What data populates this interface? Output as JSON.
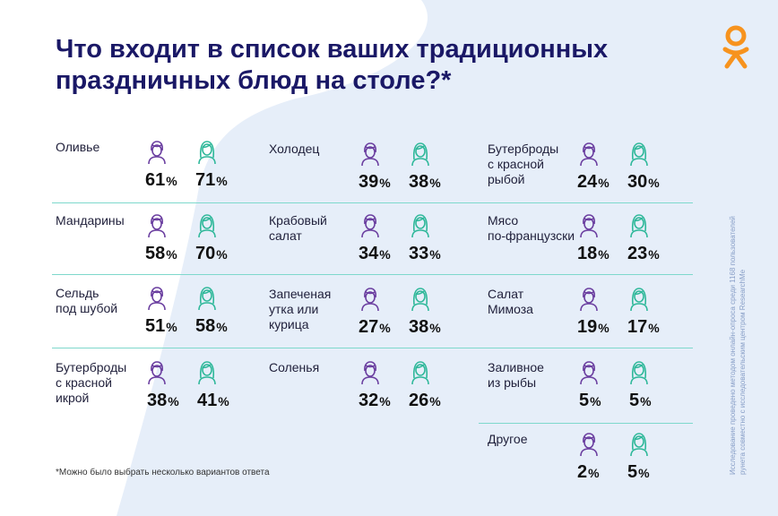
{
  "title": "Что входит в список ваших традиционных праздничных блюд на столе?*",
  "footnote": "*Можно было выбрать несколько вариантов ответа",
  "side_note": "Исследование проведено методом онлайн-опроса среди 1168 пользователей рунета совместно с исследовательским центром ResearchMe",
  "colors": {
    "title": "#1a1866",
    "male_icon": "#6b3fa0",
    "female_icon": "#2fb89a",
    "separator": "#7ed8cc",
    "logo": "#f7931e"
  },
  "percent_sign": "%",
  "icons": {
    "male": "male-person-icon",
    "female": "female-person-icon",
    "logo": "ok-logo-icon"
  },
  "chart_data": {
    "type": "table",
    "title": "Что входит в список ваших традиционных праздничных блюд на столе?*",
    "series": [
      {
        "name": "Мужчины",
        "values": [
          61,
          58,
          51,
          38,
          39,
          34,
          27,
          32,
          24,
          18,
          19,
          5,
          2
        ]
      },
      {
        "name": "Женщины",
        "values": [
          71,
          70,
          58,
          41,
          38,
          33,
          38,
          26,
          30,
          23,
          17,
          5,
          5
        ]
      }
    ],
    "items": [
      {
        "label": "Оливье",
        "male": 61,
        "female": 71
      },
      {
        "label": "Мандарины",
        "male": 58,
        "female": 70
      },
      {
        "label": "Сельдь\nпод шубой",
        "male": 51,
        "female": 58
      },
      {
        "label": "Бутерброды\nс красной\nикрой",
        "male": 38,
        "female": 41
      },
      {
        "label": "Холодец",
        "male": 39,
        "female": 38
      },
      {
        "label": "Крабовый\nсалат",
        "male": 34,
        "female": 33
      },
      {
        "label": "Запеченая\nутка или\nкурица",
        "male": 27,
        "female": 38
      },
      {
        "label": "Соленья",
        "male": 32,
        "female": 26
      },
      {
        "label": "Бутерброды\nс красной\nрыбой",
        "male": 24,
        "female": 30
      },
      {
        "label": "Мясо\nпо-французски",
        "male": 18,
        "female": 23
      },
      {
        "label": "Салат\nМимоза",
        "male": 19,
        "female": 17
      },
      {
        "label": "Заливное\nиз рыбы",
        "male": 5,
        "female": 5
      },
      {
        "label": "Другое",
        "male": 2,
        "female": 5
      }
    ]
  }
}
